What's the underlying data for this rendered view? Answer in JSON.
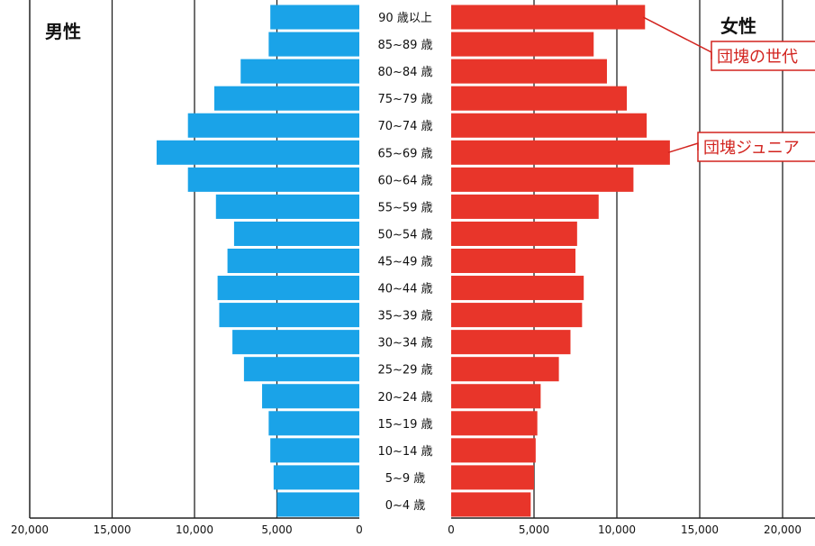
{
  "chart_data": {
    "type": "bar",
    "orientation": "horizontal",
    "layout": "population-pyramid",
    "categories": [
      "0~4 歳",
      "5~9 歳",
      "10~14 歳",
      "15~19 歳",
      "20~24 歳",
      "25~29 歳",
      "30~34 歳",
      "35~39 歳",
      "40~44 歳",
      "45~49 歳",
      "50~54 歳",
      "55~59 歳",
      "60~64 歳",
      "65~69 歳",
      "70~74 歳",
      "75~79 歳",
      "80~84 歳",
      "85~89 歳",
      "90 歳以上"
    ],
    "series": [
      {
        "name": "男性",
        "side": "left",
        "color": "#1aa3e8",
        "values": [
          5000,
          5200,
          5400,
          5500,
          5900,
          7000,
          7700,
          8500,
          8600,
          8000,
          7600,
          8700,
          10400,
          12300,
          10400,
          8800,
          7200,
          5500,
          5400
        ]
      },
      {
        "name": "女性",
        "side": "right",
        "color": "#e8352a",
        "values": [
          4800,
          5000,
          5100,
          5200,
          5400,
          6500,
          7200,
          7900,
          8000,
          7500,
          7600,
          8900,
          11000,
          13200,
          11800,
          10600,
          9400,
          8600,
          11700
        ]
      }
    ],
    "xlim": [
      0,
      20000
    ],
    "left_ticks": [
      "20,000",
      "15,000",
      "10,000",
      "5,000",
      "0"
    ],
    "right_ticks": [
      "0",
      "5,000",
      "10,000",
      "15,000",
      "20,000"
    ],
    "grid": true,
    "legend": "none",
    "annotations": [
      {
        "text": "団塊の世代",
        "category": "90 歳以上",
        "series": "女性"
      },
      {
        "text": "団塊ジュニア",
        "category": "65~69 歳",
        "series": "女性"
      }
    ]
  }
}
